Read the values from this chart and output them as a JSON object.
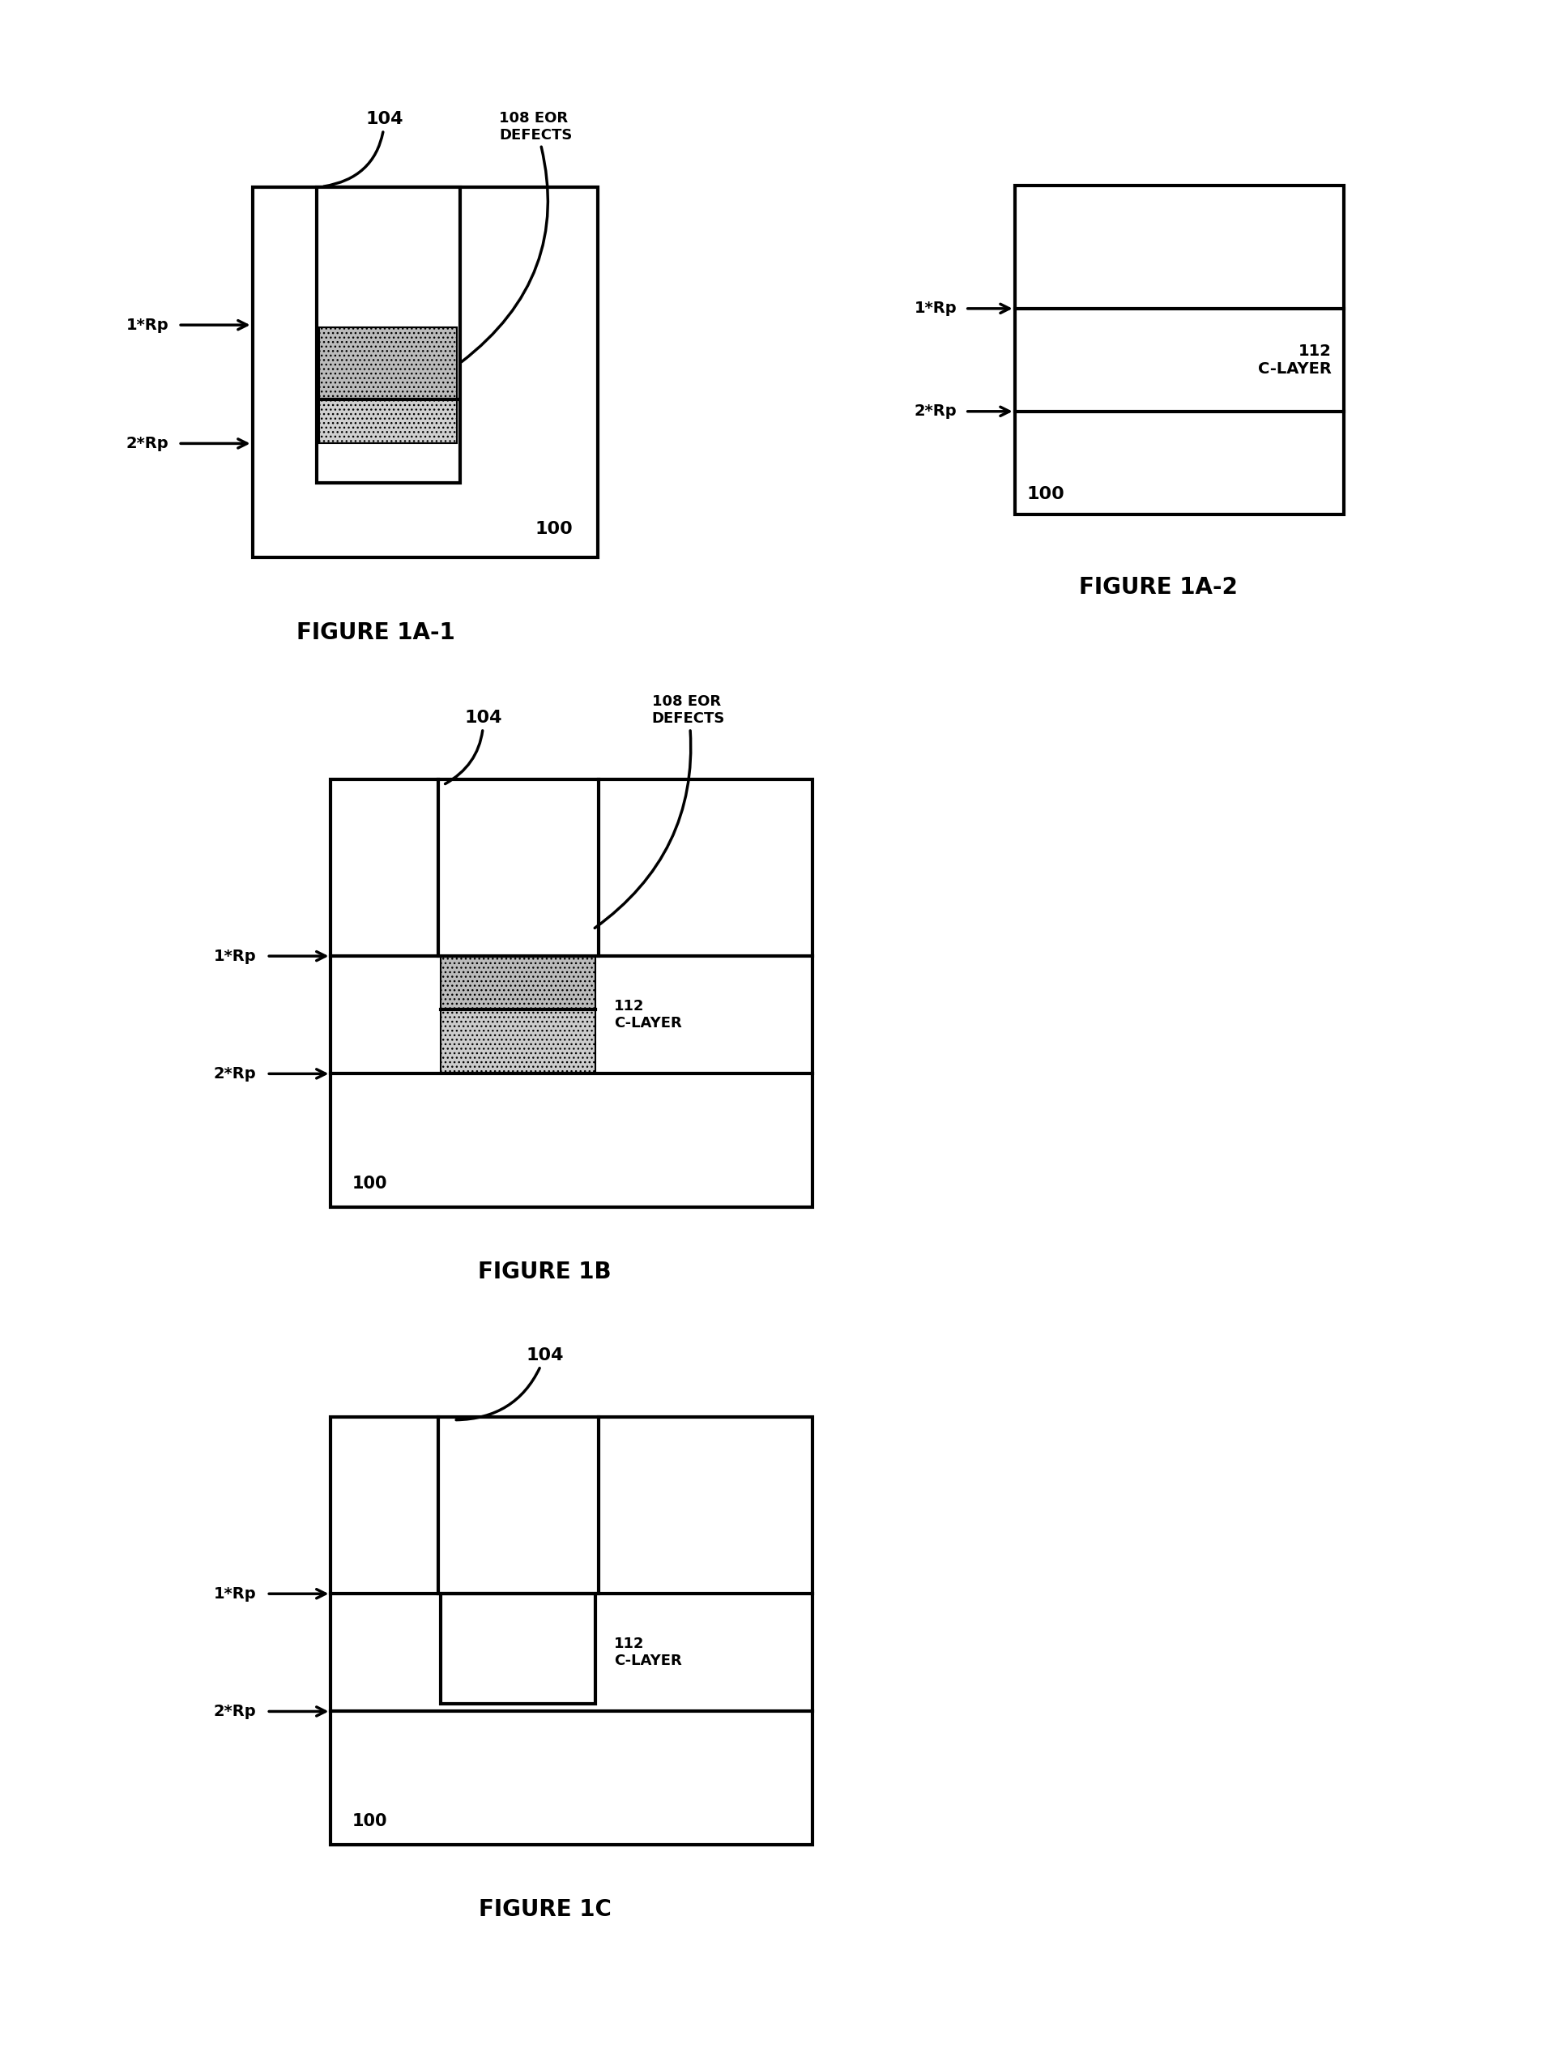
{
  "bg_color": "#ffffff",
  "fig_width": 19.33,
  "fig_height": 25.39,
  "lw": 3.0,
  "figures": {
    "fig1a1": {
      "title": "FIGURE 1A-1",
      "label_100": "100",
      "label_104": "104",
      "label_108": "108 EOR\nDEFECTS",
      "label_1rp": "1*Rp",
      "label_2rp": "2*Rp"
    },
    "fig1a2": {
      "title": "FIGURE 1A-2",
      "label_100": "100",
      "label_112": "112\nC-LAYER",
      "label_1rp": "1*Rp",
      "label_2rp": "2*Rp"
    },
    "fig1b": {
      "title": "FIGURE 1B",
      "label_100": "100",
      "label_104": "104",
      "label_108": "108 EOR\nDEFECTS",
      "label_112": "112\nC-LAYER",
      "label_1rp": "1*Rp",
      "label_2rp": "2*Rp"
    },
    "fig1c": {
      "title": "FIGURE 1C",
      "label_100": "100",
      "label_104": "104",
      "label_112": "112\nC-LAYER",
      "label_1rp": "1*Rp",
      "label_2rp": "2*Rp"
    }
  }
}
